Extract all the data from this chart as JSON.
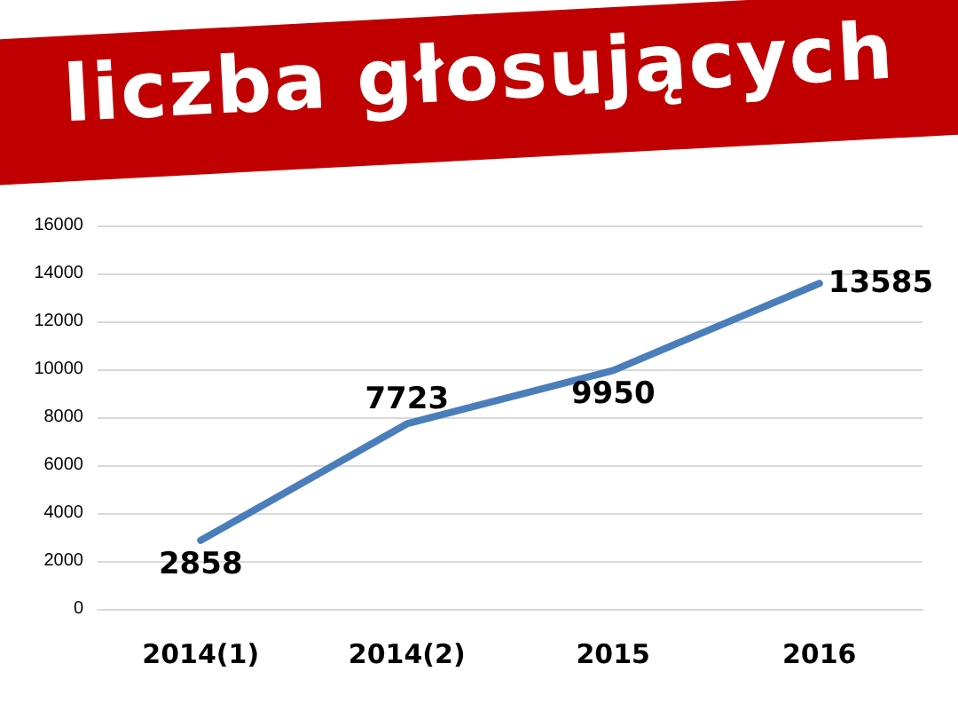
{
  "chart_data": {
    "type": "line",
    "title": "liczba głosujących",
    "categories": [
      "2014(1)",
      "2014(2)",
      "2015",
      "2016"
    ],
    "series": [
      {
        "color": "#4a7ebb",
        "values": [
          2858,
          7723,
          9950,
          13585
        ]
      }
    ],
    "ylim": [
      0,
      16000
    ],
    "yticks": [
      0,
      2000,
      4000,
      6000,
      8000,
      10000,
      12000,
      14000,
      16000
    ],
    "grid": "y",
    "data_labels": true,
    "marker": "none",
    "line_style": "solid"
  }
}
